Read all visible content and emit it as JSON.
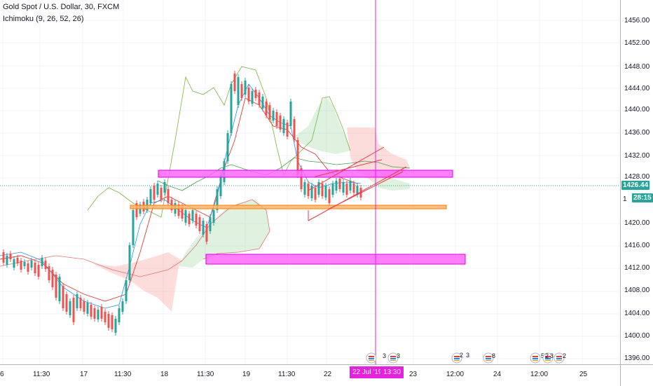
{
  "legend": {
    "title": "Gold Spot / U.S. Dollar, 30, FXCM",
    "indicator": "Ichimoku (9, 26, 52, 26)"
  },
  "price_axis": {
    "ticks": [
      "1456.00",
      "1452.00",
      "1448.00",
      "1444.00",
      "1440.00",
      "1436.00",
      "1432.00",
      "1428.00",
      "1420.00",
      "1416.00",
      "1412.00",
      "1408.00",
      "1404.00",
      "1400.00",
      "1396.00"
    ],
    "last_price": "1426.44",
    "countdown": "28:15",
    "partial_label": "1"
  },
  "time_axis": {
    "ticks": [
      "6",
      "11:30",
      "17",
      "11:30",
      "18",
      "11:30",
      "19",
      "11:30",
      "22",
      "23",
      "12:00",
      "24",
      "12:00",
      "25"
    ],
    "crosshair_date": "22 Jul '19",
    "crosshair_time": "13:30"
  },
  "events": [
    {
      "count": "3"
    },
    {
      "count": "3"
    },
    {
      "count": "2"
    },
    {
      "count": "3"
    },
    {
      "count": "8"
    },
    {
      "count": "5"
    },
    {
      "count": "2"
    },
    {
      "count": "3"
    },
    {
      "count": "2"
    }
  ],
  "colors": {
    "up": "#26a69a",
    "down": "#ef5350",
    "magenta": "#ff4df8",
    "orange": "#ff8c2f",
    "cloud_green": "rgba(76,175,80,0.18)",
    "cloud_red": "rgba(244,67,54,0.18)"
  }
}
